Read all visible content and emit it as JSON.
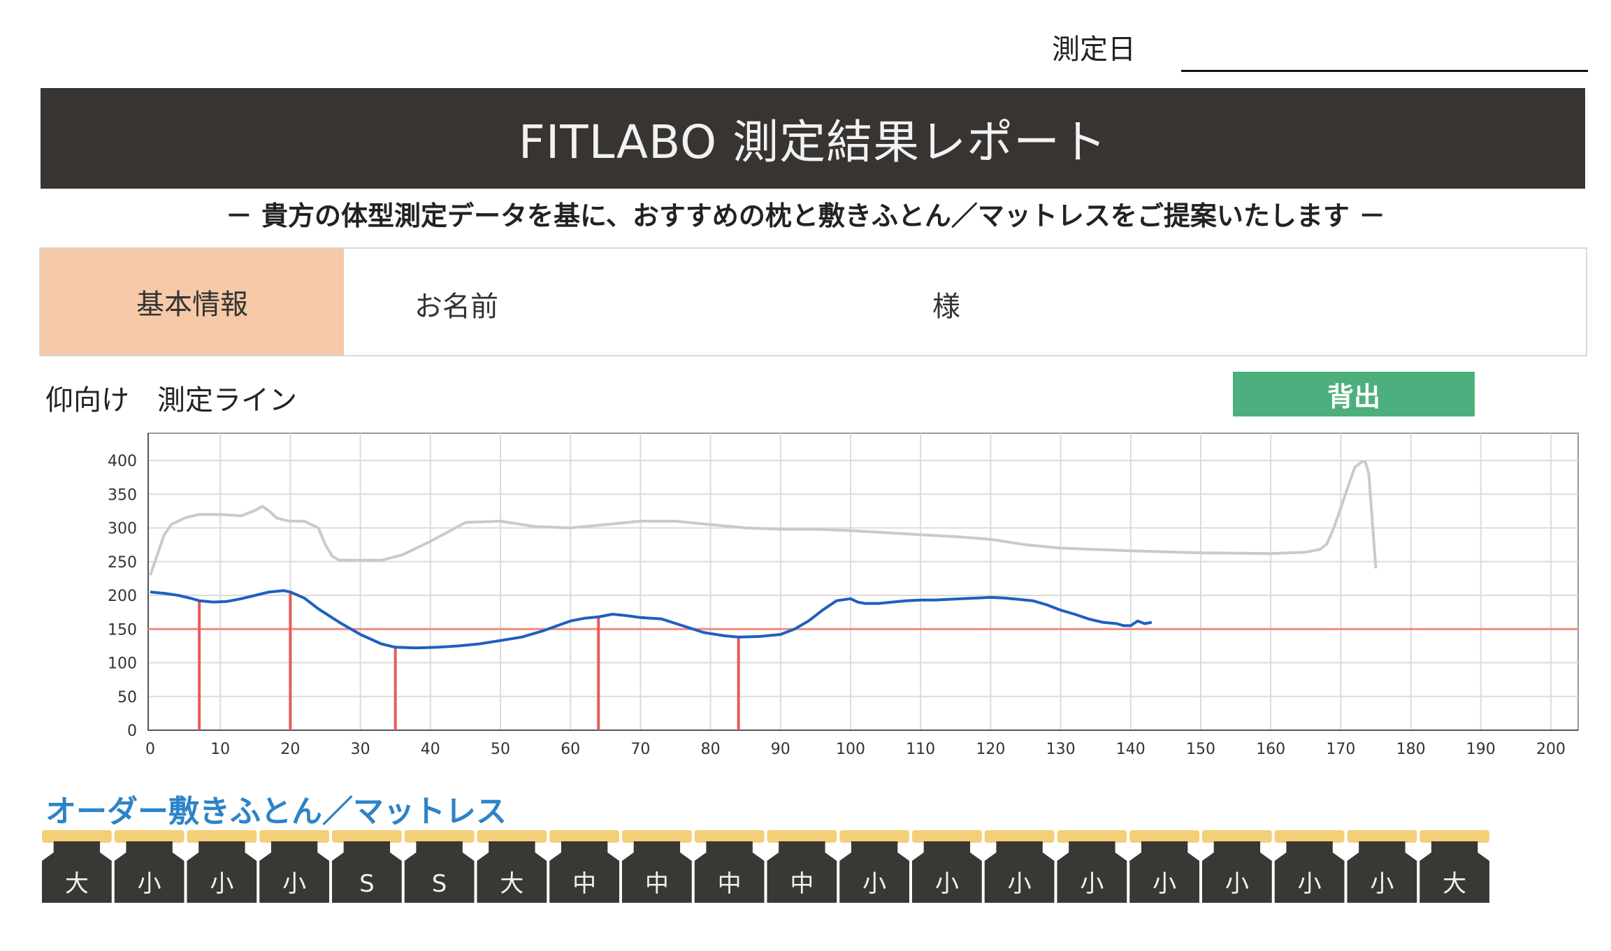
{
  "header": {
    "date_label": "測定日",
    "title": "FITLABO 測定結果レポート",
    "subtitle": "－ 貴方の体型測定データを基に、おすすめの枕と敷きふとん／マットレスをご提案いたします －"
  },
  "basic_info": {
    "section_label": "基本情報",
    "name_label": "お名前",
    "honorific": "様"
  },
  "measurement": {
    "label": "仰向け　測定ライン",
    "badge": "背出"
  },
  "colors": {
    "title_bar": "#373431",
    "info_label_bg": "#f6c9a8",
    "badge_bg": "#4caf7d",
    "back_line": "#1f5fc0",
    "upper_line": "#c9c9d2",
    "reference_line": "#f08a7e",
    "marker_line": "#e85a5a",
    "order_title": "#2d83c6",
    "segment_dark": "#3a3835",
    "segment_tab": "#f3cf78"
  },
  "chart_data": {
    "type": "line",
    "x_ticks": [
      0,
      10,
      20,
      30,
      40,
      50,
      60,
      70,
      80,
      90,
      100,
      110,
      120,
      130,
      140,
      150,
      160,
      170,
      180,
      190,
      200
    ],
    "y_ticks": [
      0,
      50,
      100,
      150,
      200,
      250,
      300,
      350,
      400
    ],
    "xlim": [
      0,
      203
    ],
    "ylim": [
      0,
      420
    ],
    "grid": true,
    "reference_y": 150,
    "markers_x": [
      7,
      20,
      35,
      64,
      84
    ],
    "series": [
      {
        "id": "upper",
        "x": [
          0,
          1,
          2,
          3,
          5,
          7,
          10,
          13,
          15,
          16,
          17,
          18,
          19,
          20,
          22,
          23,
          24,
          25,
          26,
          27,
          30,
          33,
          36,
          40,
          45,
          50,
          55,
          60,
          65,
          70,
          75,
          80,
          85,
          90,
          95,
          100,
          105,
          110,
          115,
          120,
          125,
          130,
          140,
          150,
          160,
          165,
          167,
          168,
          169,
          170,
          171,
          172,
          173,
          173.5,
          174,
          175
        ],
        "y": [
          230,
          260,
          290,
          305,
          315,
          320,
          320,
          318,
          326,
          332,
          325,
          315,
          312,
          310,
          310,
          305,
          300,
          275,
          258,
          252,
          252,
          252,
          260,
          280,
          308,
          310,
          302,
          300,
          305,
          310,
          310,
          305,
          300,
          298,
          298,
          296,
          293,
          290,
          287,
          283,
          275,
          270,
          266,
          263,
          262,
          264,
          268,
          276,
          300,
          330,
          360,
          390,
          398,
          398,
          380,
          240
        ]
      },
      {
        "id": "back",
        "x": [
          0,
          2,
          4,
          6,
          7,
          9,
          11,
          13,
          15,
          17,
          19,
          20,
          22,
          24,
          27,
          30,
          33,
          35,
          38,
          41,
          44,
          47,
          50,
          53,
          56,
          60,
          62,
          64,
          66,
          68,
          70,
          73,
          76,
          79,
          82,
          84,
          87,
          90,
          92,
          94,
          96,
          98,
          100,
          101,
          102,
          104,
          106,
          108,
          110,
          112,
          114,
          116,
          118,
          120,
          122,
          124,
          126,
          128,
          130,
          132,
          134,
          136,
          138,
          139,
          140,
          141,
          142,
          143
        ],
        "y": [
          205,
          203,
          200,
          195,
          192,
          190,
          191,
          195,
          200,
          205,
          207,
          205,
          196,
          180,
          160,
          142,
          128,
          123,
          122,
          123,
          125,
          128,
          133,
          138,
          147,
          162,
          166,
          168,
          172,
          170,
          167,
          165,
          155,
          145,
          140,
          138,
          139,
          142,
          150,
          162,
          178,
          192,
          195,
          190,
          188,
          188,
          190,
          192,
          193,
          193,
          194,
          195,
          196,
          197,
          196,
          194,
          192,
          186,
          178,
          172,
          165,
          160,
          158,
          155,
          155,
          162,
          158,
          160
        ]
      }
    ]
  },
  "order": {
    "title": "オーダー敷きふとん／マットレス",
    "segments": [
      "大",
      "小",
      "小",
      "小",
      "S",
      "S",
      "大",
      "中",
      "中",
      "中",
      "中",
      "小",
      "小",
      "小",
      "小",
      "小",
      "小",
      "小",
      "小",
      "大"
    ]
  }
}
